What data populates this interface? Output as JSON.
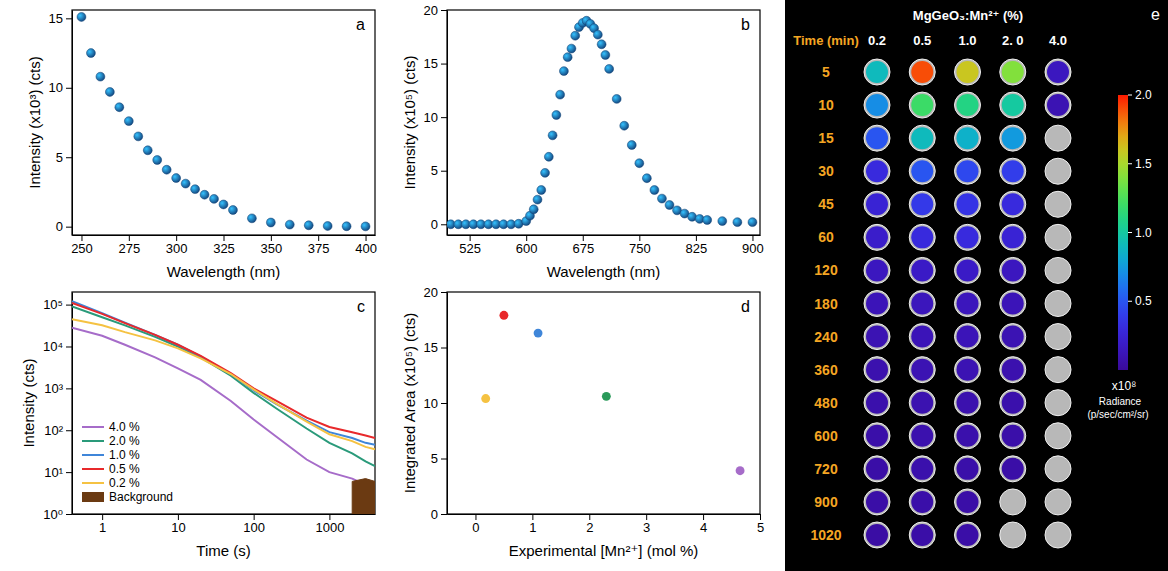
{
  "chart_data": [
    {
      "type": "scatter",
      "panel": "a",
      "xlabel": "Wavelength (nm)",
      "ylabel": "Intensity (x10³) (cts)",
      "x": [
        250,
        255,
        260,
        265,
        270,
        275,
        280,
        285,
        290,
        295,
        300,
        305,
        310,
        315,
        320,
        325,
        330,
        340,
        350,
        360,
        370,
        380,
        390,
        400
      ],
      "series": [
        {
          "values": [
            15.1,
            12.5,
            10.8,
            9.7,
            8.6,
            7.6,
            6.5,
            5.5,
            4.8,
            4.1,
            3.5,
            3.1,
            2.7,
            2.3,
            2.0,
            1.6,
            1.2,
            0.6,
            0.3,
            0.15,
            0.1,
            0.05,
            0.03,
            0.02
          ],
          "color": "#1a5fa6",
          "marker": "circle"
        }
      ],
      "xlim": [
        245,
        405
      ],
      "xticks": [
        250,
        275,
        300,
        325,
        350,
        375,
        400
      ],
      "ylim": [
        -0.6,
        15.6
      ],
      "yticks": [
        0,
        5,
        10,
        15
      ]
    },
    {
      "type": "scatter",
      "panel": "b",
      "xlabel": "Wavelength (nm)",
      "ylabel": "Intensity (x10⁵) (cts)",
      "x": [
        500,
        510,
        520,
        530,
        540,
        550,
        560,
        570,
        580,
        590,
        600,
        605,
        610,
        615,
        620,
        625,
        630,
        635,
        640,
        645,
        650,
        655,
        660,
        665,
        670,
        675,
        680,
        685,
        690,
        695,
        700,
        705,
        710,
        720,
        730,
        740,
        750,
        760,
        770,
        780,
        790,
        800,
        810,
        820,
        830,
        840,
        860,
        880,
        900
      ],
      "series": [
        {
          "values": [
            0,
            0,
            0,
            0,
            0,
            0,
            0,
            0,
            0,
            0.05,
            0.3,
            0.8,
            1.4,
            2.3,
            3.2,
            4.8,
            6.3,
            8.3,
            10.2,
            12.1,
            14.3,
            15.6,
            16.4,
            17.6,
            18.4,
            18.8,
            19.0,
            18.7,
            18.3,
            17.7,
            16.8,
            15.8,
            14.5,
            11.7,
            9.2,
            7.4,
            5.7,
            4.3,
            3.2,
            2.4,
            1.8,
            1.3,
            1.0,
            0.7,
            0.5,
            0.4,
            0.3,
            0.2,
            0.2
          ],
          "color": "#1a5fa6",
          "marker": "circle"
        }
      ],
      "xlim": [
        495,
        910
      ],
      "xticks": [
        525,
        600,
        675,
        750,
        825,
        900
      ],
      "ylim": [
        -1,
        20
      ],
      "yticks": [
        0,
        5,
        10,
        15,
        20
      ]
    },
    {
      "type": "line",
      "panel": "c",
      "log": true,
      "xlabel": "Time (s)",
      "ylabel": "Intensity (cts)",
      "x": [
        0.4,
        1,
        2,
        5,
        10,
        20,
        50,
        100,
        200,
        500,
        1000,
        2000,
        3000,
        4000
      ],
      "series": [
        {
          "name": "4.0 %",
          "color": "#a66cc9",
          "values": [
            28000,
            18000,
            11000,
            5500,
            3000,
            1600,
            500,
            180,
            70,
            20,
            10,
            7,
            5,
            4
          ]
        },
        {
          "name": "2.0 %",
          "color": "#2a9a7a",
          "values": [
            90000,
            50000,
            32000,
            17000,
            10000,
            5500,
            2000,
            780,
            330,
            110,
            50,
            28,
            18,
            14
          ]
        },
        {
          "name": "1.0 %",
          "color": "#3f86d9",
          "values": [
            120000,
            62000,
            37000,
            19000,
            11000,
            5800,
            2200,
            900,
            420,
            170,
            90,
            65,
            50,
            45
          ]
        },
        {
          "name": "0.5 %",
          "color": "#e8292b",
          "values": [
            110000,
            60000,
            36000,
            19000,
            11000,
            6000,
            2300,
            1000,
            500,
            200,
            120,
            90,
            75,
            65
          ]
        },
        {
          "name": "0.2 %",
          "color": "#f5c242",
          "values": [
            45000,
            32000,
            22000,
            14000,
            9000,
            5200,
            2200,
            950,
            430,
            160,
            80,
            55,
            40,
            35
          ]
        },
        {
          "name": "Background",
          "color": "#6b3a12",
          "type": "area",
          "values": [
            null,
            null,
            null,
            null,
            null,
            null,
            null,
            null,
            null,
            null,
            null,
            6,
            7,
            6
          ]
        }
      ],
      "xlim": [
        0.4,
        4000
      ],
      "xticks": [
        1,
        10,
        100,
        1000
      ],
      "ylim": [
        1,
        200000
      ],
      "yticks": [
        {
          "value": 1,
          "label": "10⁰"
        },
        {
          "value": 10,
          "label": "10¹"
        },
        {
          "value": 100,
          "label": "10²"
        },
        {
          "value": 1000,
          "label": "10³"
        },
        {
          "value": 10000,
          "label": "10⁴"
        },
        {
          "value": 100000,
          "label": "10⁵"
        }
      ],
      "legend": "lower left"
    },
    {
      "type": "scatter",
      "panel": "d",
      "xlabel": "Experimental [Mn²⁺] (mol %)",
      "ylabel": "Integrated Area (x10⁵) (cts)",
      "x": [
        0.18,
        0.5,
        1.1,
        2.3,
        4.65
      ],
      "series": [
        {
          "values": [
            10.4,
            17.9,
            16.3,
            10.6,
            3.9
          ],
          "colors": [
            "#f5c242",
            "#e8292b",
            "#3f86d9",
            "#2a9a5a",
            "#a66cc9"
          ],
          "marker": "circle"
        }
      ],
      "xlim": [
        -0.5,
        5
      ],
      "xticks": [
        0,
        1,
        2,
        3,
        4,
        5
      ],
      "ylim": [
        0,
        20
      ],
      "yticks": [
        0,
        5,
        10,
        15,
        20
      ]
    },
    {
      "type": "heatmap",
      "panel": "e",
      "title": "MgGeO₃:Mn²⁺ (%)",
      "ylabel": "Time (min)",
      "x": [
        "0.2",
        "0.5",
        "1.0",
        "2. 0",
        "4.0"
      ],
      "y": [
        "5",
        "10",
        "15",
        "30",
        "45",
        "60",
        "120",
        "180",
        "240",
        "360",
        "480",
        "600",
        "720",
        "900",
        "1020"
      ],
      "cells": [
        [
          0.9,
          1.9,
          1.6,
          1.4,
          0.15
        ],
        [
          0.7,
          1.2,
          1.1,
          1.0,
          0.1
        ],
        [
          0.5,
          0.9,
          0.85,
          0.75,
          null
        ],
        [
          0.3,
          0.5,
          0.45,
          0.4,
          null
        ],
        [
          0.25,
          0.38,
          0.35,
          0.3,
          null
        ],
        [
          0.2,
          0.3,
          0.3,
          0.25,
          null
        ],
        [
          0.15,
          0.18,
          0.18,
          0.15,
          null
        ],
        [
          0.12,
          0.14,
          0.14,
          0.12,
          null
        ],
        [
          0.1,
          0.12,
          0.12,
          0.1,
          null
        ],
        [
          0.08,
          0.1,
          0.1,
          0.08,
          null
        ],
        [
          0.07,
          0.09,
          0.08,
          0.07,
          null
        ],
        [
          0.06,
          0.08,
          0.07,
          0.06,
          null
        ],
        [
          0.05,
          0.07,
          0.06,
          0.05,
          null
        ],
        [
          0.05,
          0.06,
          0.05,
          null,
          null
        ],
        [
          0.04,
          0.05,
          0.05,
          null,
          null
        ]
      ],
      "colorbar": {
        "range": [
          0,
          2
        ],
        "ticks": [
          0.5,
          {
            "value": 1,
            "label": "1.0"
          },
          1.5,
          {
            "value": 2,
            "label": "2.0"
          }
        ],
        "multiplier": "x10⁸",
        "label": "Radiance",
        "units": "(p/sec/cm²/sr)"
      }
    }
  ]
}
